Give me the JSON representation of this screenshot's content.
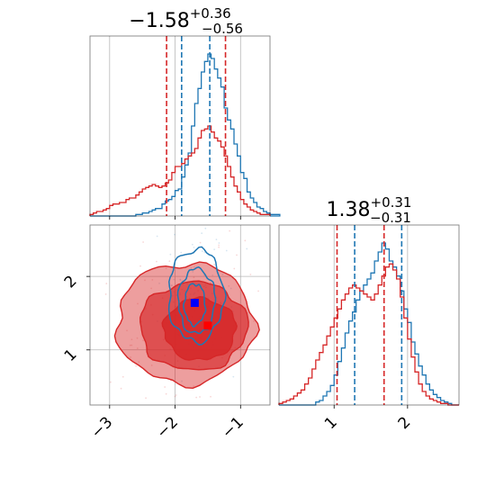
{
  "chart_data": [
    {
      "type": "histogram",
      "panel": "marginal-x",
      "title_value": "−1.58",
      "title_plus": "+0.36",
      "title_minus": "−0.56",
      "xlim": [
        -3.3,
        -0.55
      ],
      "series": [
        {
          "color": "#1f77b4",
          "bin_start": -2.6,
          "bin_width": 0.05,
          "counts": [
            1,
            1,
            2,
            2,
            3,
            4,
            5,
            5,
            8,
            10,
            11,
            13,
            17,
            18,
            26,
            34,
            42,
            60,
            75,
            85,
            96,
            103,
            108,
            105,
            98,
            92,
            86,
            72,
            64,
            58,
            48,
            40,
            29,
            25,
            16,
            12,
            9,
            6,
            5,
            3,
            2,
            1,
            1,
            1
          ],
          "quantiles": [
            -1.9,
            -1.47
          ]
        },
        {
          "color": "#d62728",
          "bin_start": -3.3,
          "bin_width": 0.05,
          "counts": [
            1,
            2,
            3,
            3,
            4,
            5,
            7,
            8,
            8,
            9,
            9,
            11,
            12,
            12,
            14,
            16,
            18,
            19,
            20,
            21,
            20,
            19,
            20,
            22,
            24,
            29,
            33,
            33,
            35,
            38,
            40,
            42,
            45,
            52,
            57,
            58,
            60,
            56,
            52,
            50,
            46,
            40,
            33,
            26,
            20,
            16,
            11,
            8,
            6,
            4,
            3,
            2,
            1,
            1,
            1
          ],
          "quantiles": [
            -2.13,
            -1.23
          ]
        }
      ]
    },
    {
      "type": "contour",
      "panel": "joint",
      "xlim": [
        -3.3,
        -0.55
      ],
      "ylim": [
        0.25,
        2.7
      ],
      "series": [
        {
          "color": "#1f77b4",
          "peak": [
            -1.7,
            1.64
          ],
          "levels": [
            {
              "cx": -1.68,
              "cy": 1.74,
              "rx": 0.42,
              "ry": 0.63
            },
            {
              "cx": -1.67,
              "cy": 1.66,
              "rx": 0.28,
              "ry": 0.44
            },
            {
              "cx": -1.7,
              "cy": 1.62,
              "rx": 0.16,
              "ry": 0.28
            }
          ]
        },
        {
          "color": "#d62728",
          "peak": [
            -1.5,
            1.33
          ],
          "levels": [
            {
              "cx": -1.84,
              "cy": 1.36,
              "rx": 1.05,
              "ry": 0.82
            },
            {
              "cx": -1.72,
              "cy": 1.32,
              "rx": 0.82,
              "ry": 0.6
            },
            {
              "cx": -1.62,
              "cy": 1.28,
              "rx": 0.55,
              "ry": 0.42
            }
          ]
        }
      ],
      "xticks": [
        -3,
        -2,
        -1
      ],
      "xtick_labels": [
        "−3",
        "−2",
        "−1"
      ],
      "yticks": [
        1,
        2
      ],
      "ytick_labels": [
        "1",
        "2"
      ]
    },
    {
      "type": "histogram",
      "panel": "marginal-y",
      "title_value": "1.38",
      "title_plus": "+0.31",
      "title_minus": "−0.31",
      "xlim": [
        0.25,
        2.7
      ],
      "series": [
        {
          "color": "#1f77b4",
          "bin_start": 0.75,
          "bin_width": 0.05,
          "counts": [
            2,
            3,
            6,
            9,
            13,
            20,
            29,
            38,
            48,
            56,
            62,
            70,
            76,
            80,
            84,
            88,
            96,
            102,
            108,
            104,
            96,
            92,
            86,
            76,
            64,
            55,
            42,
            34,
            26,
            20,
            14,
            10,
            7,
            5,
            3,
            2,
            1
          ],
          "quantiles": [
            1.28,
            1.92
          ]
        },
        {
          "color": "#d62728",
          "bin_start": 0.25,
          "bin_width": 0.05,
          "counts": [
            1,
            2,
            3,
            4,
            6,
            8,
            10,
            14,
            18,
            24,
            30,
            35,
            40,
            46,
            52,
            58,
            64,
            70,
            74,
            78,
            80,
            78,
            76,
            74,
            72,
            70,
            74,
            80,
            86,
            92,
            94,
            90,
            84,
            72,
            58,
            44,
            32,
            22,
            14,
            9,
            6,
            4,
            3,
            2,
            1,
            1
          ],
          "quantiles": [
            1.04,
            1.68
          ]
        }
      ],
      "xticks": [
        1,
        2
      ],
      "xtick_labels": [
        "1",
        "2"
      ]
    }
  ]
}
